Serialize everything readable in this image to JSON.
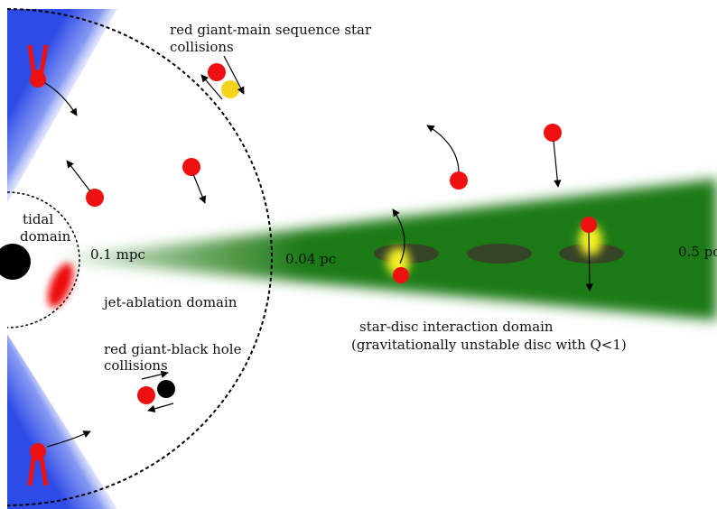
{
  "labels": {
    "tidal_line1": "tidal",
    "tidal_line2": "domain",
    "radius_inner": "0.1 mpc",
    "radius_mid": "0.04 pc",
    "radius_outer": "0.5 pc",
    "jet_ablation": "jet-ablation domain",
    "rg_ms_line1": "red giant-main sequence star",
    "rg_ms_line2": "collisions",
    "rg_bh_line1": "red giant-black hole",
    "rg_bh_line2": "collisions",
    "star_disc_line1": "star-disc interaction domain",
    "star_disc_line2": "(gravitationally unstable disc with Q<1)"
  },
  "colors": {
    "jet": "#2d4be6",
    "disc": "#1f7a14",
    "star": "#ee1111",
    "ms_star": "#f2d21a",
    "black_hole": "#000000",
    "glow": "#f5f020",
    "shadow": "#3a3a2a"
  },
  "icons": [
    "black-hole-icon",
    "red-giant-star-icon",
    "main-sequence-star-icon",
    "arrow-icon"
  ]
}
